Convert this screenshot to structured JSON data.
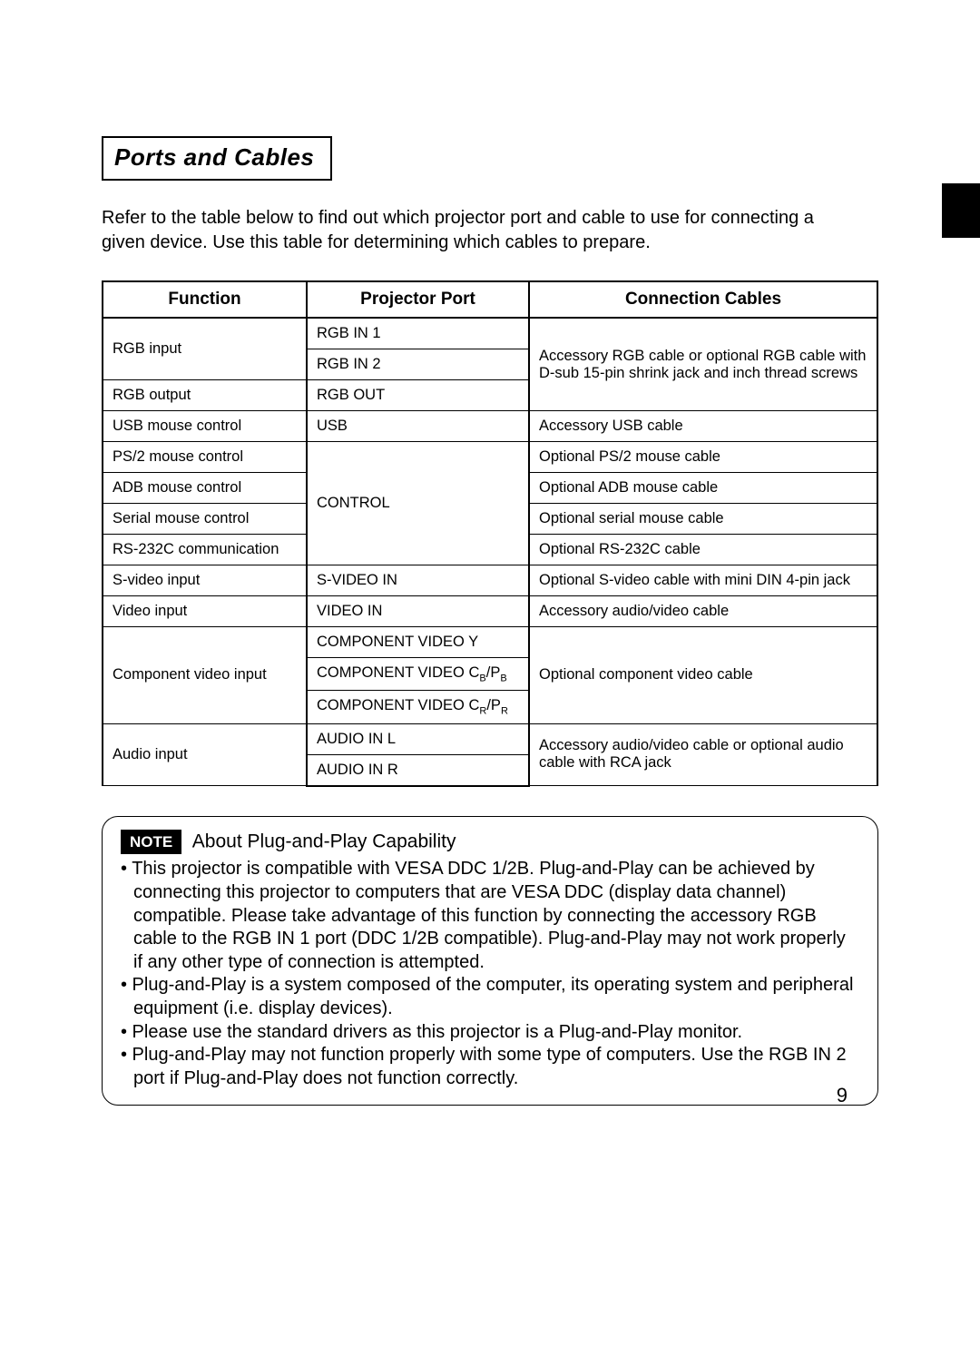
{
  "section_title": "Ports and Cables",
  "intro": "Refer to the table below to find out which projector port and cable to use for connecting a given device. Use this table for determining which cables to prepare.",
  "table": {
    "headers": {
      "function": "Function",
      "port": "Projector Port",
      "cables": "Connection Cables"
    },
    "rgb_input": "RGB input",
    "rgb_in1": "RGB IN 1",
    "rgb_in2": "RGB IN 2",
    "rgb_output": "RGB output",
    "rgb_out": "RGB OUT",
    "rgb_cable": "Accessory RGB cable or optional RGB cable with D-sub 15-pin shrink jack and inch thread screws",
    "usb_mouse": "USB mouse control",
    "usb": "USB",
    "usb_cable": "Accessory USB cable",
    "ps2_mouse": "PS/2 mouse control",
    "ps2_cable": "Optional PS/2 mouse cable",
    "adb_mouse": "ADB mouse control",
    "adb_cable": "Optional ADB mouse cable",
    "control": "CONTROL",
    "serial_mouse": "Serial mouse control",
    "serial_cable": "Optional serial mouse cable",
    "rs232_comm": "RS-232C communication",
    "rs232_cable": "Optional RS-232C cable",
    "svideo_input": "S-video input",
    "svideo_in": "S-VIDEO IN",
    "svideo_cable": "Optional S-video cable with mini DIN 4-pin jack",
    "video_input": "Video input",
    "video_in": "VIDEO IN",
    "video_cable": "Accessory audio/video cable",
    "comp_input": "Component video input",
    "comp_y": "COMPONENT VIDEO Y",
    "comp_cable": "Optional component video cable",
    "audio_input": "Audio input",
    "audio_l": "AUDIO IN L",
    "audio_r": "AUDIO IN R",
    "audio_cable": "Accessory audio/video cable or optional audio cable with RCA jack"
  },
  "note": {
    "badge": "NOTE",
    "title": "About Plug-and-Play Capability",
    "b1": "• This projector is compatible with VESA DDC 1/2B. Plug-and-Play can be achieved by connecting this projector to computers that are VESA DDC (display data channel) compatible. Please take advantage of this function by connecting the accessory RGB cable to the RGB IN 1 port (DDC 1/2B compatible). Plug-and-Play may not work properly if any other type of connection is attempted.",
    "b2": "• Plug-and-Play is a system composed of the computer, its operating system and peripheral equipment (i.e. display devices).",
    "b3": "• Please use the standard drivers as this projector is a Plug-and-Play monitor.",
    "b4": "• Plug-and-Play may not function properly with some type of computers. Use the RGB IN 2 port if Plug-and-Play does not function correctly."
  },
  "page_number": "9"
}
